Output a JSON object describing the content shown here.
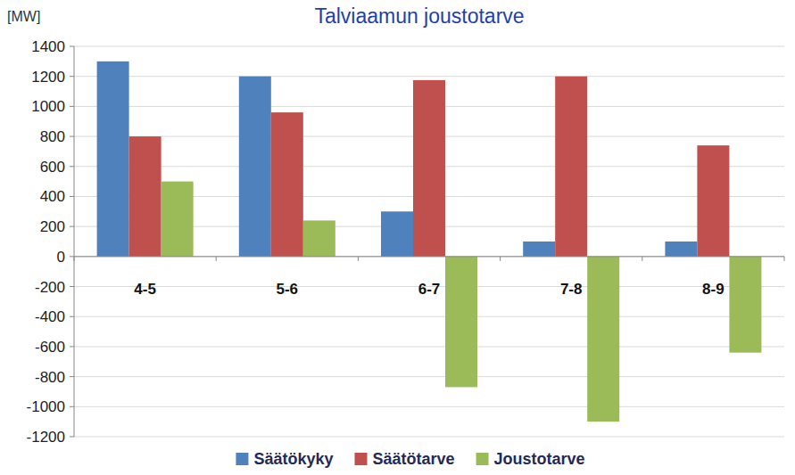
{
  "chart_data": {
    "type": "bar",
    "title": "Talviaamun joustotarve",
    "y_label": "[MW]",
    "categories": [
      "4-5",
      "5-6",
      "6-7",
      "7-8",
      "8-9"
    ],
    "series": [
      {
        "name": "Säätökyky",
        "color": "#4f81bd",
        "values": [
          1300,
          1200,
          300,
          100,
          100
        ]
      },
      {
        "name": "Säätötarve",
        "color": "#c0504d",
        "values": [
          800,
          960,
          1175,
          1200,
          740
        ]
      },
      {
        "name": "Joustotarve",
        "color": "#9bbb59",
        "values": [
          500,
          240,
          -870,
          -1100,
          -640
        ]
      }
    ],
    "ylim": [
      -1200,
      1400
    ],
    "yticks": [
      -1200,
      -1000,
      -800,
      -600,
      -400,
      -200,
      0,
      200,
      400,
      600,
      800,
      1000,
      1200,
      1400
    ],
    "grid": true,
    "legend": "bottom"
  }
}
